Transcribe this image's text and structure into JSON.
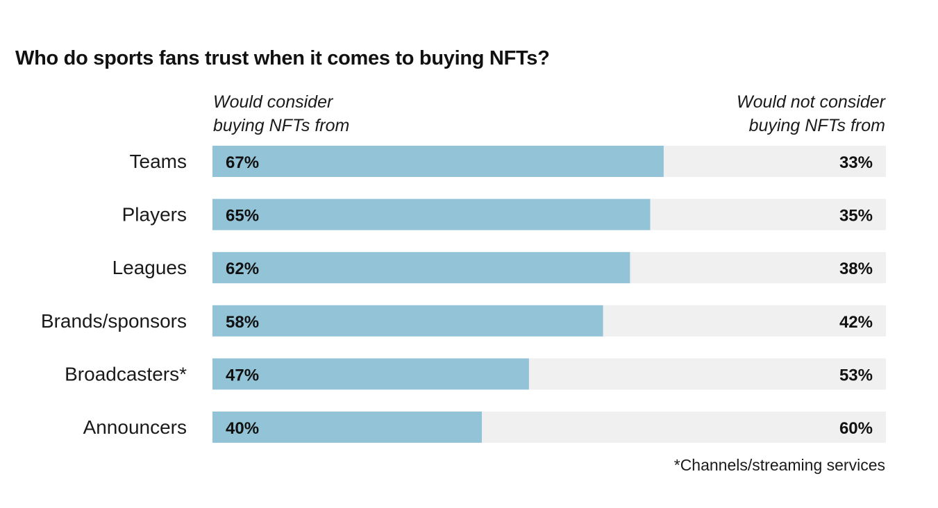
{
  "chart_data": {
    "type": "bar",
    "orientation": "horizontal-stacked-100",
    "title": "Who do sports fans trust when it comes to buying NFTs?",
    "categories": [
      "Teams",
      "Players",
      "Leagues",
      "Brands/sponsors",
      "Broadcasters*",
      "Announcers"
    ],
    "series": [
      {
        "name": "Would consider buying NFTs from",
        "color": "#93c3d7",
        "values": [
          67,
          65,
          62,
          58,
          47,
          40
        ]
      },
      {
        "name": "Would not consider buying NFTs from",
        "color": "#f0f0f0",
        "values": [
          33,
          35,
          38,
          42,
          53,
          60
        ]
      }
    ],
    "value_suffix": "%",
    "xlim": [
      0,
      100
    ],
    "legend": {
      "left_line1": "Would consider",
      "left_line2": "buying NFTs from",
      "right_line1": "Would not consider",
      "right_line2": "buying NFTs from"
    },
    "footnote": "*Channels/streaming services",
    "grid": false
  }
}
